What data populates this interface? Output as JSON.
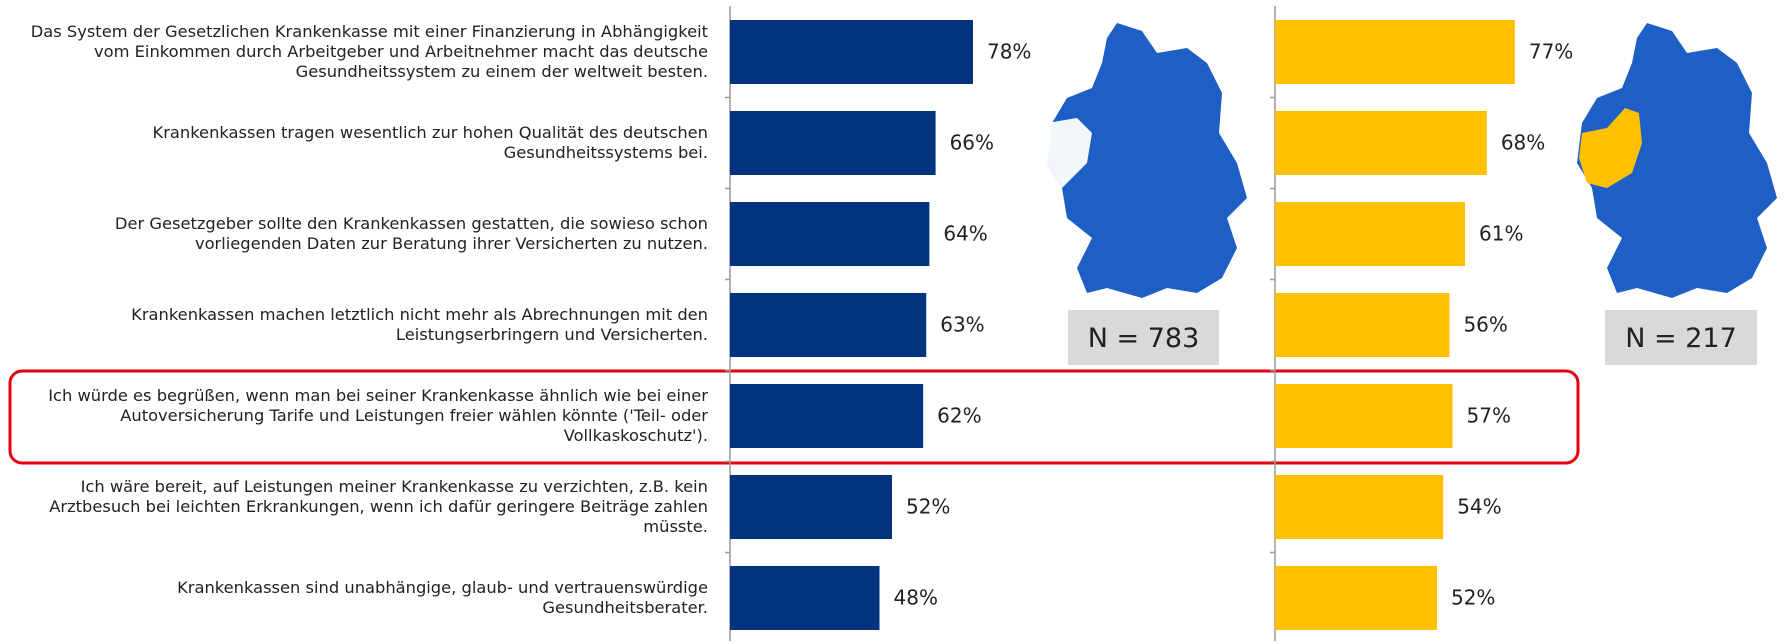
{
  "chart_data": {
    "type": "bar",
    "orientation": "horizontal",
    "categories": [
      "Das System der Gesetzlichen Krankenkasse mit einer Finanzierung in Abhängigkeit vom Einkommen durch Arbeitgeber und Arbeitnehmer macht das deutsche Gesundheitssystem zu einem der weltweit besten.",
      "Krankenkassen tragen wesentlich zur hohen Qualität des deutschen Gesundheitssystems bei.",
      "Der Gesetzgeber sollte den Krankenkassen gestatten, die sowieso schon vorliegenden Daten zur Beratung ihrer Versicherten zu nutzen.",
      "Krankenkassen machen letztlich nicht mehr als Abrechnungen mit den Leistungserbringern und Versicherten.",
      "Ich würde es begrüßen, wenn man bei seiner Krankenkasse ähnlich wie bei einer Autoversicherung Tarife und Leistungen freier wählen könnte ('Teil- oder Vollkaskoschutz').",
      "Ich wäre bereit, auf Leistungen meiner Krankenkasse zu verzichten, z.B. kein Arztbesuch bei leichten Erkrankungen, wenn ich dafür geringere Beiträge zahlen müsste.",
      "Krankenkassen sind unabhängige, glaub- und vertrauenswürdige Gesundheitsberater."
    ],
    "series": [
      {
        "color": "#03337f",
        "values": [
          78,
          66,
          64,
          63,
          62,
          52,
          48
        ],
        "value_labels": [
          "78%",
          "66%",
          "64%",
          "63%",
          "62%",
          "52%",
          "48%"
        ],
        "sample_label": "N = 783"
      },
      {
        "color": "#ffc000",
        "values": [
          77,
          68,
          61,
          56,
          57,
          54,
          52
        ],
        "value_labels": [
          "77%",
          "68%",
          "61%",
          "56%",
          "57%",
          "54%",
          "52%"
        ],
        "sample_label": "N = 217"
      }
    ]
  }
}
